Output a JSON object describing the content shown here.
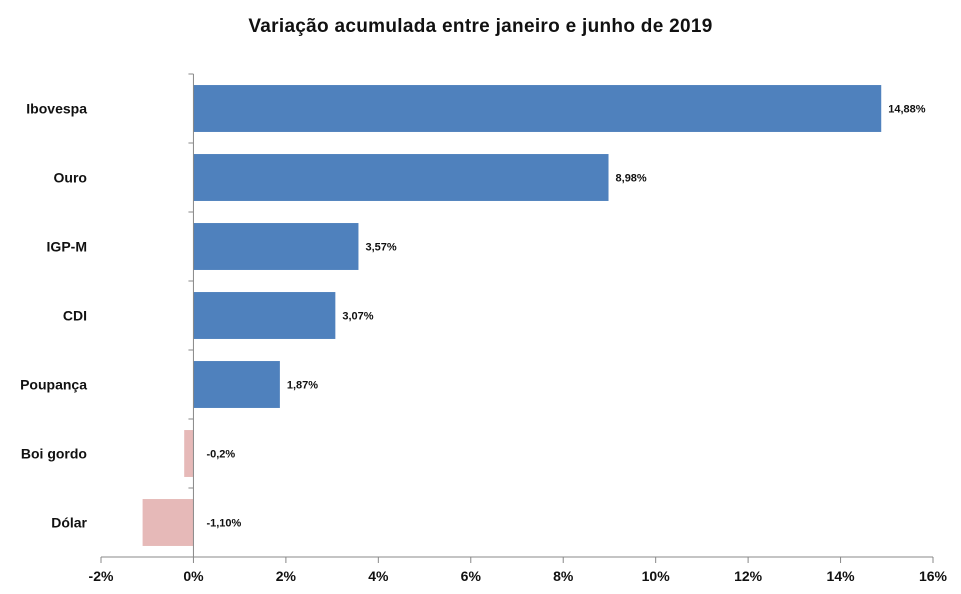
{
  "chart_data": {
    "type": "bar",
    "orientation": "horizontal",
    "title": "Variação acumulada entre janeiro e junho de 2019",
    "xlabel": "",
    "ylabel": "",
    "categories": [
      "Ibovespa",
      "Ouro",
      "IGP-M",
      "CDI",
      "Poupança",
      "Boi gordo",
      "Dólar"
    ],
    "values": [
      14.88,
      8.98,
      3.57,
      3.07,
      1.87,
      -0.2,
      -1.1
    ],
    "data_labels": [
      "14,88%",
      "8,98%",
      "3,57%",
      "3,07%",
      "1,87%",
      "-0,2%",
      "-1,10%"
    ],
    "xlim": [
      -2,
      16
    ],
    "x_ticks": [
      -2,
      0,
      2,
      4,
      6,
      8,
      10,
      12,
      14,
      16
    ],
    "x_tick_labels": [
      "-2%",
      "0%",
      "2%",
      "4%",
      "6%",
      "8%",
      "10%",
      "12%",
      "14%",
      "16%"
    ],
    "grid": false,
    "legend": "none",
    "colors": {
      "positive": "#4f81bd",
      "negative": "#e6b9b8",
      "axis": "#888888"
    }
  }
}
